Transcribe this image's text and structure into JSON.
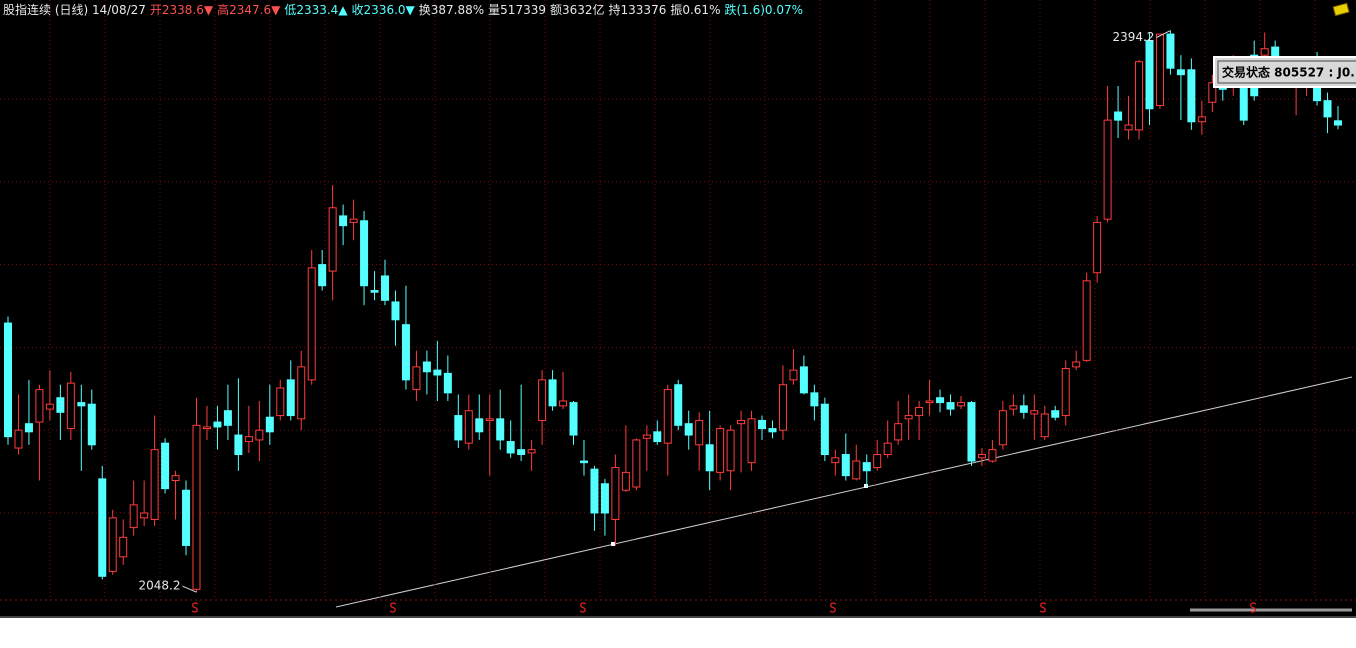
{
  "chart_data": {
    "type": "candlestick",
    "header": [
      {
        "text": "股指连续 (日线) 14/08/27",
        "color": "#e8e8e8"
      },
      {
        "text": "开2338.6▼",
        "color": "#ff5050"
      },
      {
        "text": "高2347.6▼",
        "color": "#ff5050"
      },
      {
        "text": "低2333.4▲",
        "color": "#54ffff"
      },
      {
        "text": "收2336.0▼",
        "color": "#54ffff"
      },
      {
        "text": "换387.88%",
        "color": "#e8e8e8"
      },
      {
        "text": "量517339",
        "color": "#e8e8e8"
      },
      {
        "text": "额3632亿",
        "color": "#e8e8e8"
      },
      {
        "text": "持133376",
        "color": "#e8e8e8"
      },
      {
        "text": "振0.61%",
        "color": "#e8e8e8"
      },
      {
        "text": "跌(1.6)0.07%",
        "color": "#54ffff"
      }
    ],
    "popup": "交易状态  805527 : J0.",
    "max_label": "2394.2",
    "min_label": "2048.2",
    "up_color": "#ff3c3c",
    "down_color": "#54ffff",
    "ylim": [
      2036,
      2413
    ],
    "grid_levels": [
      2097,
      2148,
      2199,
      2250,
      2301,
      2352
    ],
    "open": [
      2214,
      2137,
      2152,
      2153,
      2161,
      2168,
      2149,
      2165,
      2164,
      2118,
      2061,
      2070,
      2088,
      2094,
      2093,
      2140,
      2117,
      2111,
      2050,
      2149,
      2153,
      2160,
      2145,
      2141,
      2142,
      2156,
      2157,
      2179,
      2155,
      2179,
      2250,
      2246,
      2280,
      2276,
      2277,
      2234,
      2243,
      2227,
      2213,
      2173,
      2190,
      2185,
      2183,
      2157,
      2140,
      2155,
      2154,
      2155,
      2141,
      2136,
      2134,
      2154,
      2179,
      2163,
      2165,
      2129,
      2124,
      2115,
      2093,
      2111,
      2113,
      2143,
      2147,
      2140,
      2176,
      2152,
      2139,
      2139,
      2122,
      2123,
      2152,
      2128,
      2154,
      2149,
      2148,
      2179,
      2187,
      2171,
      2164,
      2128,
      2133,
      2118,
      2128,
      2125,
      2133,
      2142,
      2155,
      2157,
      2165,
      2168,
      2165,
      2163,
      2165,
      2131,
      2129,
      2139,
      2161,
      2163,
      2158,
      2144,
      2160,
      2157,
      2187,
      2191,
      2245,
      2278,
      2344,
      2333,
      2333,
      2388,
      2348,
      2392,
      2370,
      2370,
      2338,
      2350,
      2371,
      2362,
      2367,
      2379,
      2379,
      2384,
      2363,
      2366,
      2362,
      2365,
      2351,
      2338.6
    ],
    "high": [
      2218,
      2170,
      2179,
      2176,
      2185,
      2176,
      2184,
      2176,
      2173,
      2126,
      2099,
      2093,
      2117,
      2117,
      2157,
      2143,
      2123,
      2117,
      2168,
      2163,
      2163,
      2176,
      2180,
      2163,
      2166,
      2176,
      2179,
      2191,
      2197,
      2259,
      2259,
      2299,
      2287,
      2290,
      2283,
      2246,
      2253,
      2234,
      2237,
      2197,
      2197,
      2203,
      2194,
      2170,
      2170,
      2170,
      2170,
      2173,
      2154,
      2176,
      2142,
      2185,
      2185,
      2184,
      2166,
      2142,
      2126,
      2118,
      2133,
      2151,
      2143,
      2151,
      2154,
      2176,
      2179,
      2160,
      2159,
      2160,
      2151,
      2151,
      2160,
      2160,
      2157,
      2154,
      2188,
      2198,
      2194,
      2176,
      2168,
      2136,
      2146,
      2139,
      2133,
      2142,
      2154,
      2166,
      2170,
      2166,
      2179,
      2173,
      2170,
      2169,
      2166,
      2137,
      2142,
      2166,
      2170,
      2170,
      2170,
      2163,
      2163,
      2191,
      2197,
      2245,
      2280,
      2360,
      2360,
      2354,
      2376,
      2393,
      2392,
      2394.2,
      2379,
      2377,
      2351,
      2367,
      2376,
      2379,
      2371,
      2388,
      2393,
      2388,
      2375,
      2376,
      2377,
      2381,
      2356,
      2347.6
    ],
    "low": [
      2139,
      2133,
      2139,
      2117,
      2154,
      2142,
      2142,
      2123,
      2136,
      2056,
      2059,
      2065,
      2083,
      2089,
      2089,
      2109,
      2093,
      2071,
      2048.2,
      2142,
      2136,
      2142,
      2123,
      2134,
      2129,
      2139,
      2154,
      2154,
      2148,
      2176,
      2234,
      2228,
      2262,
      2265,
      2225,
      2228,
      2225,
      2200,
      2173,
      2166,
      2170,
      2166,
      2166,
      2137,
      2136,
      2142,
      2120,
      2136,
      2131,
      2129,
      2123,
      2139,
      2160,
      2161,
      2139,
      2120,
      2086,
      2083,
      2077,
      2110,
      2111,
      2123,
      2139,
      2120,
      2148,
      2136,
      2123,
      2111,
      2117,
      2111,
      2122,
      2123,
      2142,
      2143,
      2142,
      2176,
      2170,
      2154,
      2129,
      2120,
      2117,
      2117,
      2113,
      2123,
      2131,
      2139,
      2142,
      2142,
      2157,
      2159,
      2157,
      2161,
      2126,
      2126,
      2128,
      2136,
      2157,
      2155,
      2142,
      2142,
      2154,
      2151,
      2185,
      2190,
      2239,
      2276,
      2328,
      2327,
      2327,
      2336,
      2346,
      2367,
      2339,
      2333,
      2330,
      2344,
      2351,
      2354,
      2336,
      2351,
      2371,
      2360,
      2360,
      2342,
      2354,
      2348,
      2331,
      2333.4
    ],
    "close": [
      2144,
      2148,
      2147,
      2173,
      2164,
      2159,
      2177,
      2163,
      2139,
      2058,
      2094,
      2082,
      2102,
      2097,
      2136,
      2112,
      2120,
      2077,
      2151,
      2150,
      2150,
      2151,
      2133,
      2144,
      2148,
      2147,
      2174,
      2157,
      2187,
      2248,
      2237,
      2285,
      2274,
      2278,
      2237,
      2233,
      2228,
      2216,
      2179,
      2187,
      2184,
      2182,
      2171,
      2142,
      2160,
      2147,
      2155,
      2142,
      2134,
      2133,
      2136,
      2179,
      2163,
      2166,
      2145,
      2128,
      2097,
      2097,
      2125,
      2122,
      2142,
      2145,
      2141,
      2173,
      2151,
      2145,
      2154,
      2123,
      2149,
      2148,
      2154,
      2155,
      2149,
      2147,
      2176,
      2185,
      2171,
      2163,
      2133,
      2131,
      2120,
      2129,
      2123,
      2133,
      2140,
      2152,
      2157,
      2162,
      2166,
      2165,
      2161,
      2165,
      2129,
      2133,
      2136,
      2160,
      2163,
      2159,
      2160,
      2158,
      2156,
      2186,
      2190,
      2240,
      2276,
      2339,
      2339,
      2336,
      2375,
      2346,
      2392,
      2371,
      2367,
      2338,
      2341,
      2362,
      2358,
      2375,
      2339,
      2354,
      2383,
      2363,
      2368,
      2368,
      2368,
      2351,
      2341,
      2336.0
    ]
  }
}
